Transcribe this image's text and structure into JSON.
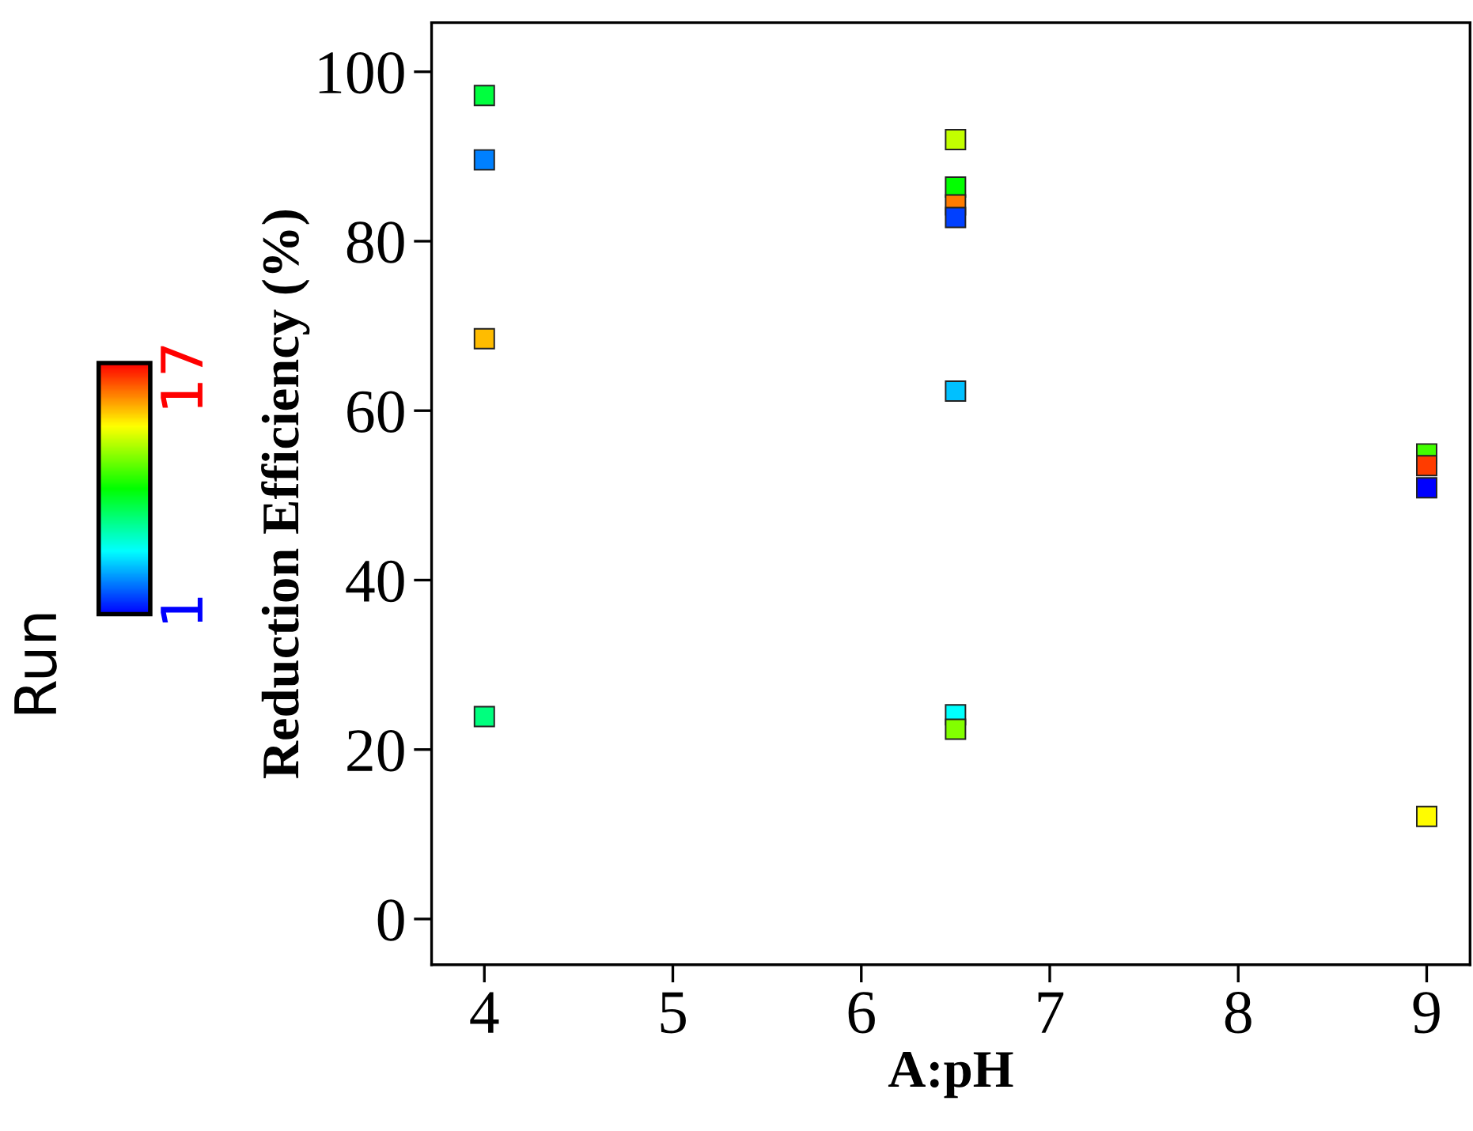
{
  "chart_data": {
    "type": "scatter",
    "xlabel": "A:pH",
    "ylabel": "Reduction Efficiency (%)",
    "clabel": "Run",
    "x": [
      4,
      4,
      4,
      4,
      6.5,
      6.5,
      6.5,
      6.5,
      6.5,
      6.5,
      6.5,
      9,
      9,
      9,
      9
    ],
    "values": [
      97.2,
      89.6,
      68.5,
      23.9,
      92.0,
      86.4,
      84.3,
      82.8,
      62.3,
      24.1,
      22.4,
      54.9,
      53.5,
      50.9,
      12.1
    ],
    "cvalues": [
      8,
      3,
      14,
      7,
      12,
      9,
      15,
      2,
      4,
      5,
      11,
      10,
      16,
      1,
      13
    ],
    "clim": [
      1,
      17
    ],
    "cticks": [
      1,
      17
    ],
    "xlim": [
      3.72,
      9.23
    ],
    "ylim": [
      -5.4,
      105.8
    ],
    "xticks": [
      4,
      5,
      6,
      7,
      8,
      9
    ],
    "yticks": [
      0,
      20,
      40,
      60,
      80,
      100
    ],
    "marker": "square",
    "grid": false
  }
}
